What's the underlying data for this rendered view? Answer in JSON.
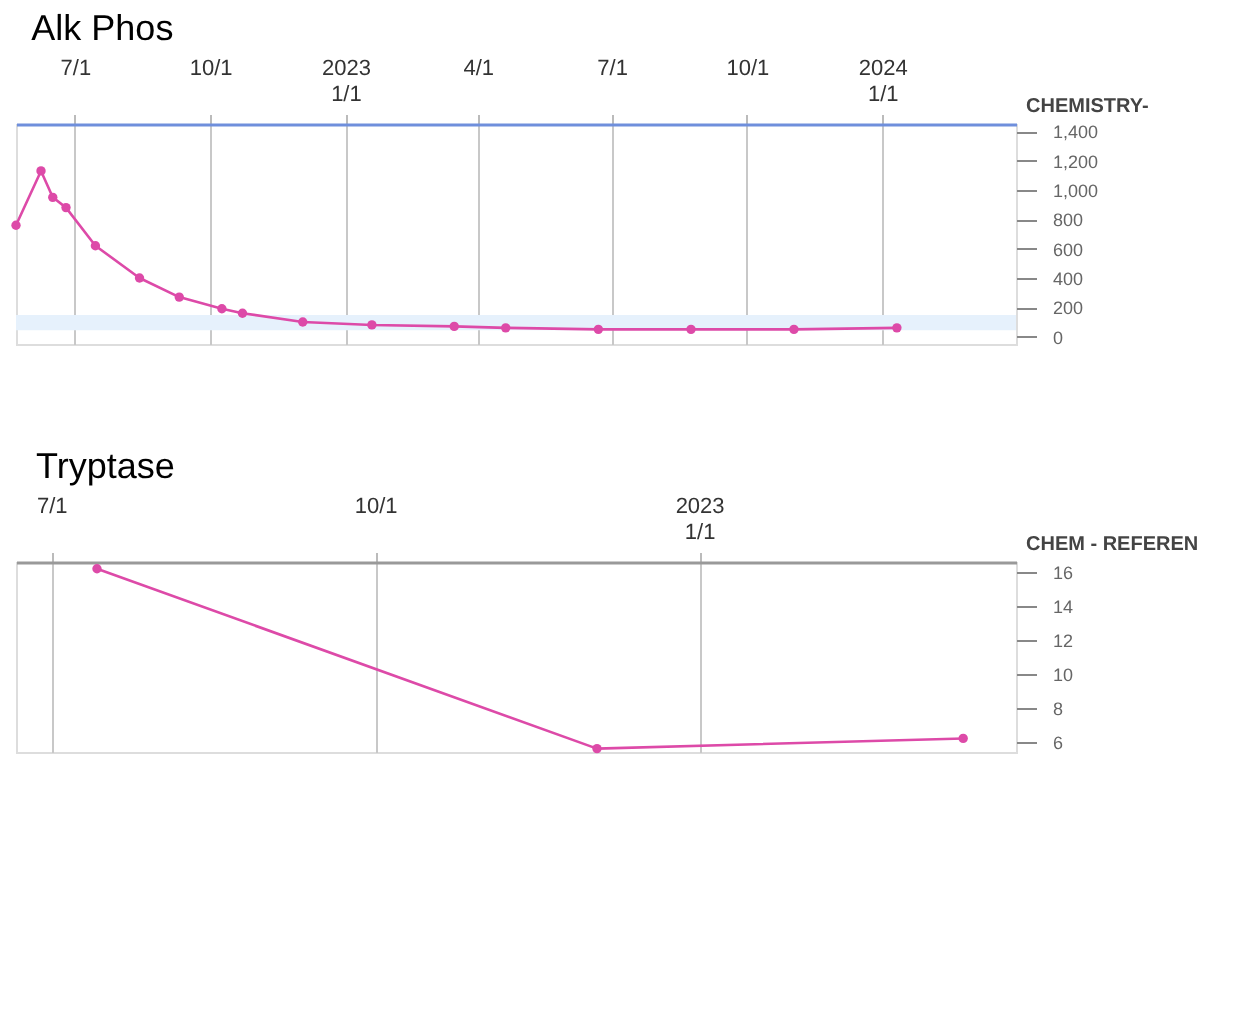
{
  "chart_data": [
    {
      "type": "line",
      "title": "Alk Phos",
      "annotations": [
        "CHEMISTRY-"
      ],
      "x": [
        "2022-05-22",
        "2022-06-08",
        "2022-06-16",
        "2022-06-25",
        "2022-07-15",
        "2022-08-14",
        "2022-09-10",
        "2022-10-09",
        "2022-10-23",
        "2022-12-03",
        "2023-01-19",
        "2023-03-16",
        "2023-04-20",
        "2023-06-22",
        "2023-08-24",
        "2023-11-02",
        "2024-01-11"
      ],
      "series": [
        {
          "color": "#dd4aa8",
          "values": [
            760,
            1130,
            950,
            880,
            620,
            400,
            270,
            190,
            160,
            100,
            80,
            70,
            60,
            50,
            50,
            50,
            60
          ]
        }
      ],
      "xlim": [
        "2022-05-22",
        "2024-04-01"
      ],
      "xticks": [
        {
          "value": "2022-07-01",
          "label": "7/1"
        },
        {
          "value": "2022-10-01",
          "label": "10/1"
        },
        {
          "value": "2023-01-01",
          "label": "2023\n1/1"
        },
        {
          "value": "2023-04-01",
          "label": "4/1"
        },
        {
          "value": "2023-07-01",
          "label": "7/1"
        },
        {
          "value": "2023-10-01",
          "label": "10/1"
        },
        {
          "value": "2024-01-01",
          "label": "2024\n1/1"
        }
      ],
      "ylim": [
        -50,
        1450
      ],
      "yticks": [
        0,
        200,
        400,
        600,
        800,
        {
          "value": 1000,
          "label": "1,000"
        },
        {
          "value": 1200,
          "label": "1,200"
        },
        {
          "value": 1400,
          "label": "1,400"
        }
      ],
      "bands": [
        {
          "axis": "y",
          "from": 44,
          "to": 147,
          "color": "#e6f1fc"
        }
      ],
      "grid": "x",
      "marker": "circle",
      "line_style": "solid"
    },
    {
      "type": "line",
      "title": "Tryptase",
      "annotations": [
        "CHEM - REFEREN"
      ],
      "x": [
        "2022-07-14",
        "2022-12-03",
        "2023-03-17"
      ],
      "series": [
        {
          "color": "#dd4aa8",
          "values": [
            16.2,
            5.6,
            6.2
          ]
        }
      ],
      "xlim": [
        "2022-06-21",
        "2023-04-01"
      ],
      "xticks": [
        {
          "value": "2022-07-01",
          "label": "7/1"
        },
        {
          "value": "2022-10-01",
          "label": "10/1"
        },
        {
          "value": "2023-01-01",
          "label": "2023\n1/1"
        }
      ],
      "ylim": [
        5.4,
        16.6
      ],
      "yticks": [
        6,
        8,
        10,
        12,
        14,
        16
      ],
      "grid": "x",
      "marker": "circle",
      "line_style": "solid"
    }
  ]
}
